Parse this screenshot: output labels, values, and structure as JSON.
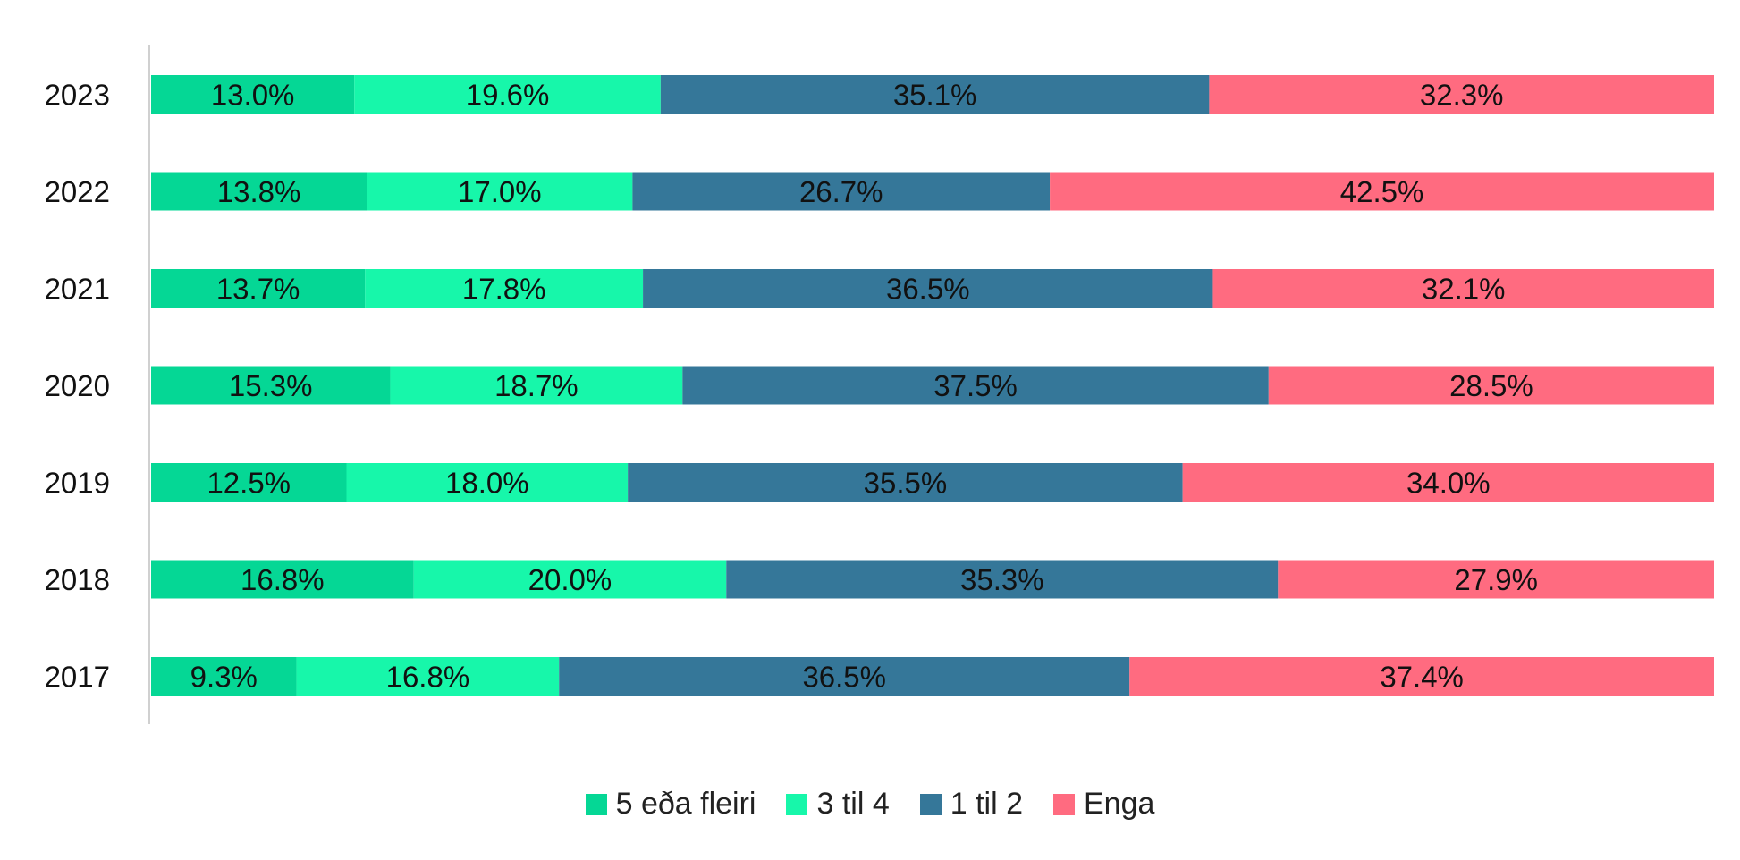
{
  "chart_data": {
    "type": "bar",
    "orientation": "horizontal",
    "stacked": "percent",
    "title": "",
    "xlabel": "",
    "ylabel": "",
    "xlim": [
      0,
      100
    ],
    "grid": false,
    "legend_position": "bottom",
    "categories": [
      "2023",
      "2022",
      "2021",
      "2020",
      "2019",
      "2018",
      "2017"
    ],
    "series": [
      {
        "name": "5 eða fleiri",
        "color": "#05D795",
        "values": [
          13.0,
          13.8,
          13.7,
          15.3,
          12.5,
          16.8,
          9.3
        ],
        "labels": [
          "13.0%",
          "13.8%",
          "13.7%",
          "15.3%",
          "12.5%",
          "16.8%",
          "9.3%"
        ]
      },
      {
        "name": "3 til 4",
        "color": "#17F7AA",
        "values": [
          19.6,
          17.0,
          17.8,
          18.7,
          18.0,
          20.0,
          16.8
        ],
        "labels": [
          "19.6%",
          "17.0%",
          "17.8%",
          "18.7%",
          "18.0%",
          "20.0%",
          "16.8%"
        ]
      },
      {
        "name": "1 til 2",
        "color": "#357799",
        "values": [
          35.1,
          26.7,
          36.5,
          37.5,
          35.5,
          35.3,
          36.5
        ],
        "labels": [
          "35.1%",
          "26.7%",
          "36.5%",
          "37.5%",
          "35.5%",
          "35.3%",
          "36.5%"
        ]
      },
      {
        "name": "Enga",
        "color": "#FF6B80",
        "values": [
          32.3,
          42.5,
          32.1,
          28.5,
          34.0,
          27.9,
          37.4
        ],
        "labels": [
          "32.3%",
          "42.5%",
          "32.1%",
          "28.5%",
          "34.0%",
          "27.9%",
          "37.4%"
        ]
      }
    ]
  }
}
